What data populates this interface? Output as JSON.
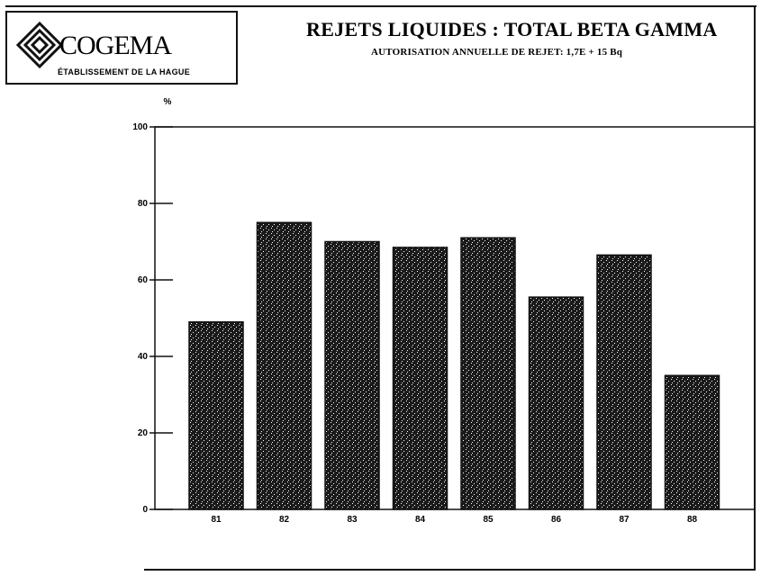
{
  "header": {
    "logo_name": "COGEMA",
    "logo_subtitle": "ÉTABLISSEMENT DE LA HAGUE",
    "logo_icon": "cogema-logo-icon",
    "title": "REJETS LIQUIDES : TOTAL BETA GAMMA",
    "subtitle": "AUTORISATION ANNUELLE DE REJET: 1,7E + 15 Bq"
  },
  "chart_data": {
    "type": "bar",
    "title": "REJETS LIQUIDES : TOTAL BETA GAMMA",
    "subtitle": "AUTORISATION ANNUELLE DE REJET: 1,7E + 15 Bq",
    "ylabel": "%",
    "xlabel": "",
    "categories": [
      "81",
      "82",
      "83",
      "84",
      "85",
      "86",
      "87",
      "88"
    ],
    "values": [
      49,
      75,
      70,
      68.5,
      71,
      55.5,
      66.5,
      35
    ],
    "ylim": [
      0,
      100
    ],
    "yticks": [
      0,
      20,
      40,
      60,
      80,
      100
    ],
    "grid": false,
    "legend": "none",
    "bar_color": "#1a1a1a"
  }
}
